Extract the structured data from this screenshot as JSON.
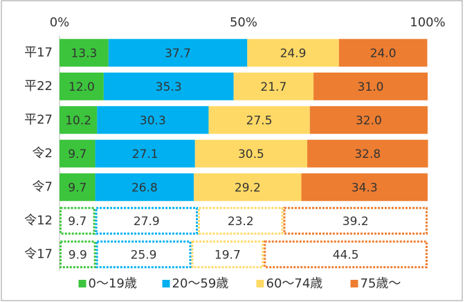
{
  "chart_data": {
    "type": "stacked_bar_h",
    "categories": [
      "平17",
      "平22",
      "平27",
      "令2",
      "令7",
      "令12",
      "令17"
    ],
    "series": [
      {
        "name": "0〜19歳",
        "color": "#3cc43c",
        "values": [
          13.3,
          12.0,
          10.2,
          9.7,
          9.7,
          9.7,
          9.9
        ],
        "value_labels": [
          "13.3",
          "12.0",
          "10.2",
          "9.7",
          "9.7",
          "9.7",
          "9.9"
        ]
      },
      {
        "name": "20〜59歳",
        "color": "#00b0f0",
        "values": [
          37.7,
          35.3,
          30.3,
          27.1,
          26.8,
          27.9,
          25.9
        ],
        "value_labels": [
          "37.7",
          "35.3",
          "30.3",
          "27.1",
          "26.8",
          "27.9",
          "25.9"
        ]
      },
      {
        "name": "60〜74歳",
        "color": "#ffd966",
        "values": [
          24.9,
          21.7,
          27.5,
          30.5,
          29.2,
          23.2,
          19.7
        ],
        "value_labels": [
          "24.9",
          "21.7",
          "27.5",
          "30.5",
          "29.2",
          "23.2",
          "19.7"
        ]
      },
      {
        "name": "75歳〜",
        "color": "#ed7d31",
        "values": [
          24.0,
          31.0,
          32.0,
          32.8,
          34.3,
          39.2,
          44.5
        ],
        "value_labels": [
          "24.0",
          "31.0",
          "32.0",
          "32.8",
          "34.3",
          "39.2",
          "44.5"
        ]
      }
    ],
    "dashed": [
      false,
      false,
      false,
      false,
      false,
      true,
      true
    ],
    "xlim": [
      0,
      100
    ],
    "xticks": [
      {
        "value": 0,
        "label": "0%"
      },
      {
        "value": 50,
        "label": "50%"
      },
      {
        "value": 100,
        "label": "100%"
      }
    ],
    "legend": "bottom"
  }
}
